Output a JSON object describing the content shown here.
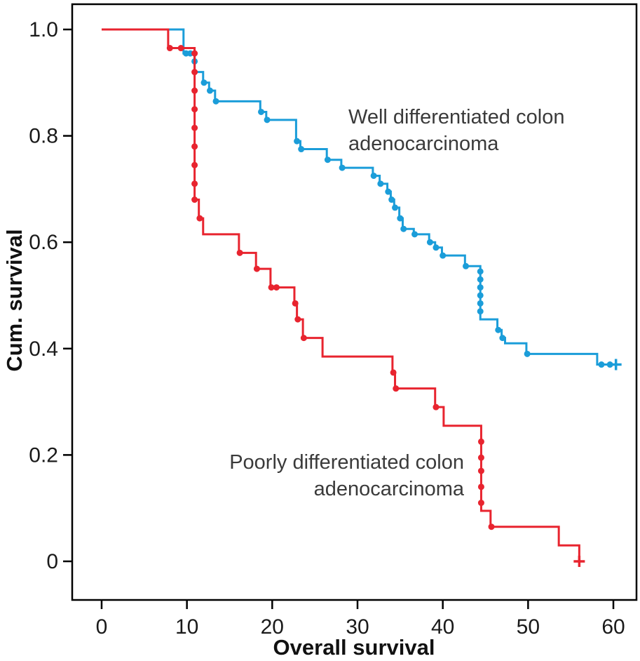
{
  "figure": {
    "background": "#ffffff",
    "frame_color": "#000000"
  },
  "chart_data": {
    "type": "line",
    "subtype": "kaplan_meier_step",
    "title": "",
    "xlabel": "Overall survival",
    "ylabel": "Cum. survival",
    "axes": {
      "xlim": [
        -3.45,
        62.71
      ],
      "ylim": [
        -0.0726,
        1.0475
      ],
      "x_ticks": [
        0,
        10,
        20,
        30,
        40,
        50,
        60
      ],
      "x_tick_labels": [
        "0",
        "10",
        "20",
        "30",
        "40",
        "50",
        "60"
      ],
      "y_ticks": [
        0,
        0.2,
        0.4,
        0.6,
        0.8,
        1.0
      ],
      "y_tick_labels": [
        "0",
        "0.2",
        "0.4",
        "0.6",
        "0.8",
        "1.0"
      ],
      "grid": false,
      "legend_position": "none"
    },
    "series": [
      {
        "name": "Well differentiated colon adenocarcinoma",
        "color": "#1b9dd9",
        "steps": [
          [
            7.6,
            1.0
          ],
          [
            9.6,
            0.955
          ],
          [
            10.9,
            0.92
          ],
          [
            11.9,
            0.9
          ],
          [
            12.6,
            0.885
          ],
          [
            13.3,
            0.865
          ],
          [
            18.6,
            0.845
          ],
          [
            19.3,
            0.83
          ],
          [
            22.8,
            0.79
          ],
          [
            23.3,
            0.775
          ],
          [
            26.4,
            0.755
          ],
          [
            28.1,
            0.74
          ],
          [
            31.8,
            0.725
          ],
          [
            32.6,
            0.71
          ],
          [
            33.5,
            0.695
          ],
          [
            33.9,
            0.68
          ],
          [
            34.3,
            0.665
          ],
          [
            34.9,
            0.645
          ],
          [
            35.3,
            0.625
          ],
          [
            36.6,
            0.615
          ],
          [
            38.4,
            0.6
          ],
          [
            39.1,
            0.59
          ],
          [
            39.9,
            0.575
          ],
          [
            42.6,
            0.555
          ],
          [
            44.4,
            0.455
          ],
          [
            46.4,
            0.435
          ],
          [
            46.9,
            0.42
          ],
          [
            47.3,
            0.41
          ],
          [
            49.8,
            0.39
          ],
          [
            58.1,
            0.37
          ]
        ],
        "end_time": 60.3,
        "censor_marks": [
          [
            9.9,
            0.955
          ],
          [
            10.4,
            0.955
          ],
          [
            10.9,
            0.94
          ],
          [
            12.0,
            0.9
          ],
          [
            12.7,
            0.885
          ],
          [
            13.4,
            0.865
          ],
          [
            18.7,
            0.845
          ],
          [
            19.4,
            0.83
          ],
          [
            22.9,
            0.79
          ],
          [
            23.4,
            0.775
          ],
          [
            26.5,
            0.755
          ],
          [
            28.2,
            0.74
          ],
          [
            31.9,
            0.725
          ],
          [
            32.7,
            0.71
          ],
          [
            33.6,
            0.695
          ],
          [
            34.0,
            0.68
          ],
          [
            34.4,
            0.665
          ],
          [
            35.0,
            0.645
          ],
          [
            35.4,
            0.625
          ],
          [
            36.7,
            0.615
          ],
          [
            38.5,
            0.6
          ],
          [
            39.2,
            0.59
          ],
          [
            40.0,
            0.575
          ],
          [
            42.7,
            0.555
          ],
          [
            44.4,
            0.545
          ],
          [
            44.4,
            0.53
          ],
          [
            44.4,
            0.515
          ],
          [
            44.4,
            0.5
          ],
          [
            44.4,
            0.485
          ],
          [
            44.4,
            0.47
          ],
          [
            46.5,
            0.435
          ],
          [
            47.0,
            0.42
          ],
          [
            49.9,
            0.39
          ],
          [
            58.6,
            0.37
          ],
          [
            59.6,
            0.37
          ]
        ],
        "terminal_mark": [
          60.3,
          0.37
        ]
      },
      {
        "name": "Poorly differentiated colon adenocarcinoma",
        "color": "#e8242f",
        "steps": [
          [
            0,
            1.0
          ],
          [
            7.8,
            0.965
          ],
          [
            10.9,
            0.68
          ],
          [
            11.4,
            0.645
          ],
          [
            11.9,
            0.615
          ],
          [
            16.1,
            0.58
          ],
          [
            18.1,
            0.55
          ],
          [
            19.8,
            0.515
          ],
          [
            22.6,
            0.485
          ],
          [
            22.9,
            0.455
          ],
          [
            23.6,
            0.42
          ],
          [
            25.9,
            0.385
          ],
          [
            34.1,
            0.355
          ],
          [
            34.4,
            0.325
          ],
          [
            39.1,
            0.29
          ],
          [
            40.1,
            0.255
          ],
          [
            44.5,
            0.095
          ],
          [
            45.6,
            0.065
          ],
          [
            53.6,
            0.03
          ],
          [
            56.0,
            0.0
          ]
        ],
        "end_time": 56.0,
        "censor_marks": [
          [
            8.0,
            0.965
          ],
          [
            9.3,
            0.965
          ],
          [
            10.9,
            0.955
          ],
          [
            10.9,
            0.92
          ],
          [
            10.9,
            0.885
          ],
          [
            10.9,
            0.85
          ],
          [
            10.9,
            0.815
          ],
          [
            10.9,
            0.78
          ],
          [
            10.9,
            0.745
          ],
          [
            10.9,
            0.71
          ],
          [
            10.9,
            0.68
          ],
          [
            11.5,
            0.645
          ],
          [
            16.2,
            0.58
          ],
          [
            18.2,
            0.55
          ],
          [
            19.9,
            0.515
          ],
          [
            20.5,
            0.515
          ],
          [
            22.7,
            0.485
          ],
          [
            23.0,
            0.455
          ],
          [
            23.7,
            0.42
          ],
          [
            34.2,
            0.355
          ],
          [
            34.5,
            0.325
          ],
          [
            39.2,
            0.29
          ],
          [
            44.5,
            0.225
          ],
          [
            44.5,
            0.195
          ],
          [
            44.5,
            0.17
          ],
          [
            44.5,
            0.14
          ],
          [
            44.5,
            0.11
          ],
          [
            45.7,
            0.065
          ]
        ],
        "terminal_mark": [
          56.0,
          0.0
        ]
      }
    ],
    "annotations": [
      {
        "id": "well",
        "line1": "Well differentiated colon",
        "line2": "adenocarcinoma"
      },
      {
        "id": "poor",
        "line1": "Poorly differentiated colon",
        "line2": "adenocarcinoma"
      }
    ]
  }
}
